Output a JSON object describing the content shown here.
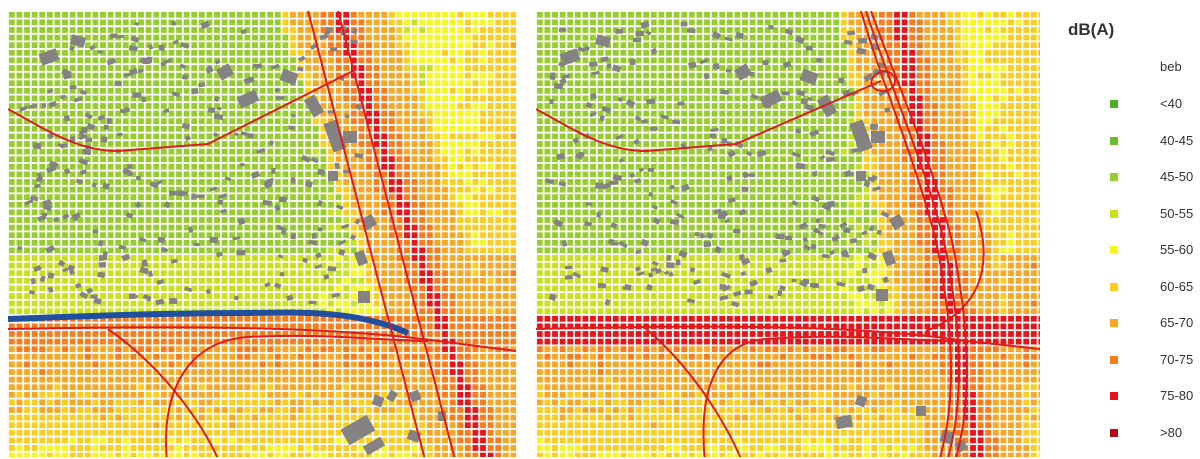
{
  "legend": {
    "title": "dB(A)",
    "subtitle": "beb",
    "classes": [
      {
        "label": "<40",
        "color": "#4caf24"
      },
      {
        "label": "40-45",
        "color": "#70bb2a"
      },
      {
        "label": "45-50",
        "color": "#97cc2e"
      },
      {
        "label": "50-55",
        "color": "#c6e21e"
      },
      {
        "label": "55-60",
        "color": "#f6f621"
      },
      {
        "label": "60-65",
        "color": "#fdcc1c"
      },
      {
        "label": "65-70",
        "color": "#fba622"
      },
      {
        "label": "70-75",
        "color": "#f97b1a"
      },
      {
        "label": "75-80",
        "color": "#e8141a"
      },
      {
        "label": ">80",
        "color": "#b10c15"
      }
    ]
  },
  "maps": [
    {
      "name": "left",
      "has_water": true,
      "water_color": "#1f4f9e",
      "road_color": "#e01b1b",
      "building_color": "#848283"
    },
    {
      "name": "right",
      "has_water": false,
      "road_color": "#e01b1b",
      "building_color": "#848283"
    }
  ]
}
